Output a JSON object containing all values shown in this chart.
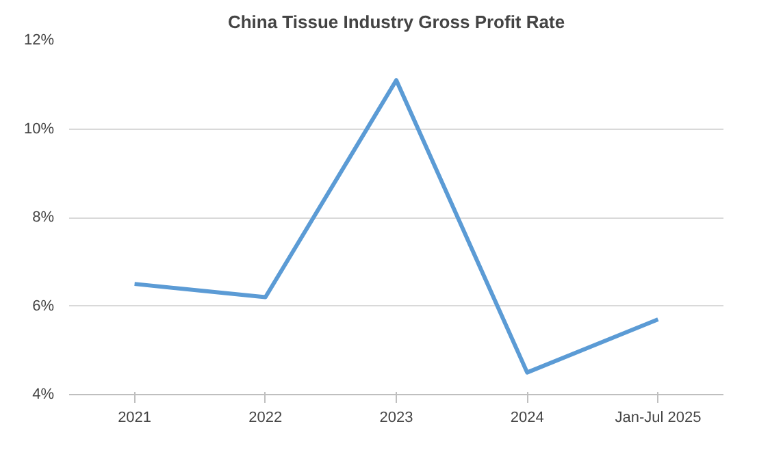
{
  "chart_data": {
    "type": "line",
    "title": "China Tissue Industry Gross Profit Rate",
    "categories": [
      "2021",
      "2022",
      "2023",
      "2024",
      "Jan-Jul 2025"
    ],
    "series": [
      {
        "color": "#5b9bd5",
        "values": [
          6.5,
          6.2,
          11.1,
          4.5,
          5.7
        ]
      }
    ],
    "ylim": [
      4,
      12
    ],
    "yticks": [
      {
        "value": 4,
        "label": "4%"
      },
      {
        "value": 6,
        "label": "6%"
      },
      {
        "value": 8,
        "label": "8%"
      },
      {
        "value": 10,
        "label": "10%"
      },
      {
        "value": 12,
        "label": "12%"
      }
    ],
    "grid": "y",
    "marker": "none",
    "line_style": "solid"
  }
}
